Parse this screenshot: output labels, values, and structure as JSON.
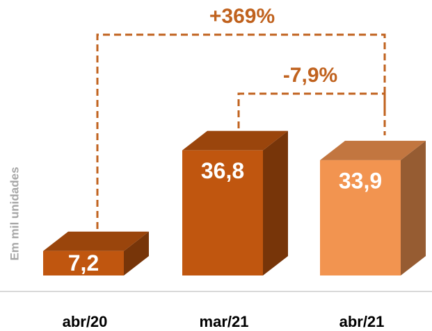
{
  "chart_data": {
    "type": "bar3d",
    "y_axis_label": "Em mil unidades",
    "categories": [
      "abr/20",
      "mar/21",
      "abr/21"
    ],
    "values": [
      7.2,
      36.8,
      33.9
    ],
    "value_labels": [
      "7,2",
      "36,8",
      "33,9"
    ],
    "colors": [
      "#c0560f",
      "#c0560f",
      "#f29450"
    ],
    "annotations": [
      "+369%",
      "-7,9%"
    ]
  }
}
